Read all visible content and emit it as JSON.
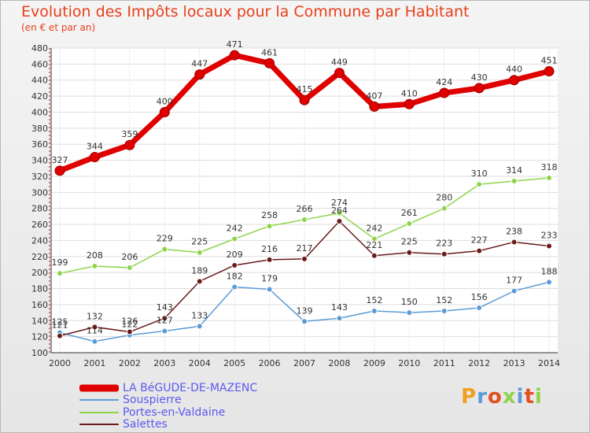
{
  "chart_data": {
    "type": "line",
    "title": "Evolution des Impôts locaux pour la Commune par Habitant",
    "subtitle": "(en € et par an)",
    "xlabel": "",
    "ylabel": "",
    "categories": [
      "2000",
      "2001",
      "2002",
      "2003",
      "2004",
      "2005",
      "2006",
      "2007",
      "2008",
      "2009",
      "2010",
      "2011",
      "2012",
      "2013",
      "2014"
    ],
    "ylim": [
      100,
      480
    ],
    "yticks": [
      100,
      120,
      140,
      160,
      180,
      200,
      220,
      240,
      260,
      280,
      300,
      320,
      340,
      360,
      380,
      400,
      420,
      440,
      460,
      480
    ],
    "grid": true,
    "series": [
      {
        "name": "LA BéGUDE-DE-MAZENC",
        "color": "#e00000",
        "values": [
          327,
          344,
          359,
          400,
          447,
          471,
          461,
          415,
          449,
          407,
          410,
          424,
          430,
          440,
          451
        ]
      },
      {
        "name": "Souspierre",
        "color": "#5b9bd5",
        "values": [
          125,
          114,
          122,
          127,
          133,
          182,
          179,
          139,
          143,
          152,
          150,
          152,
          156,
          177,
          188
        ]
      },
      {
        "name": "Portes-en-Valdaine",
        "color": "#8ed44a",
        "values": [
          199,
          208,
          206,
          229,
          225,
          242,
          258,
          266,
          274,
          242,
          261,
          280,
          310,
          314,
          318
        ]
      },
      {
        "name": "Salettes",
        "color": "#6b1a1a",
        "values": [
          121,
          132,
          126,
          143,
          189,
          209,
          216,
          217,
          264,
          221,
          225,
          223,
          227,
          238,
          233
        ]
      }
    ]
  },
  "logo": {
    "text": "Proxiti"
  }
}
